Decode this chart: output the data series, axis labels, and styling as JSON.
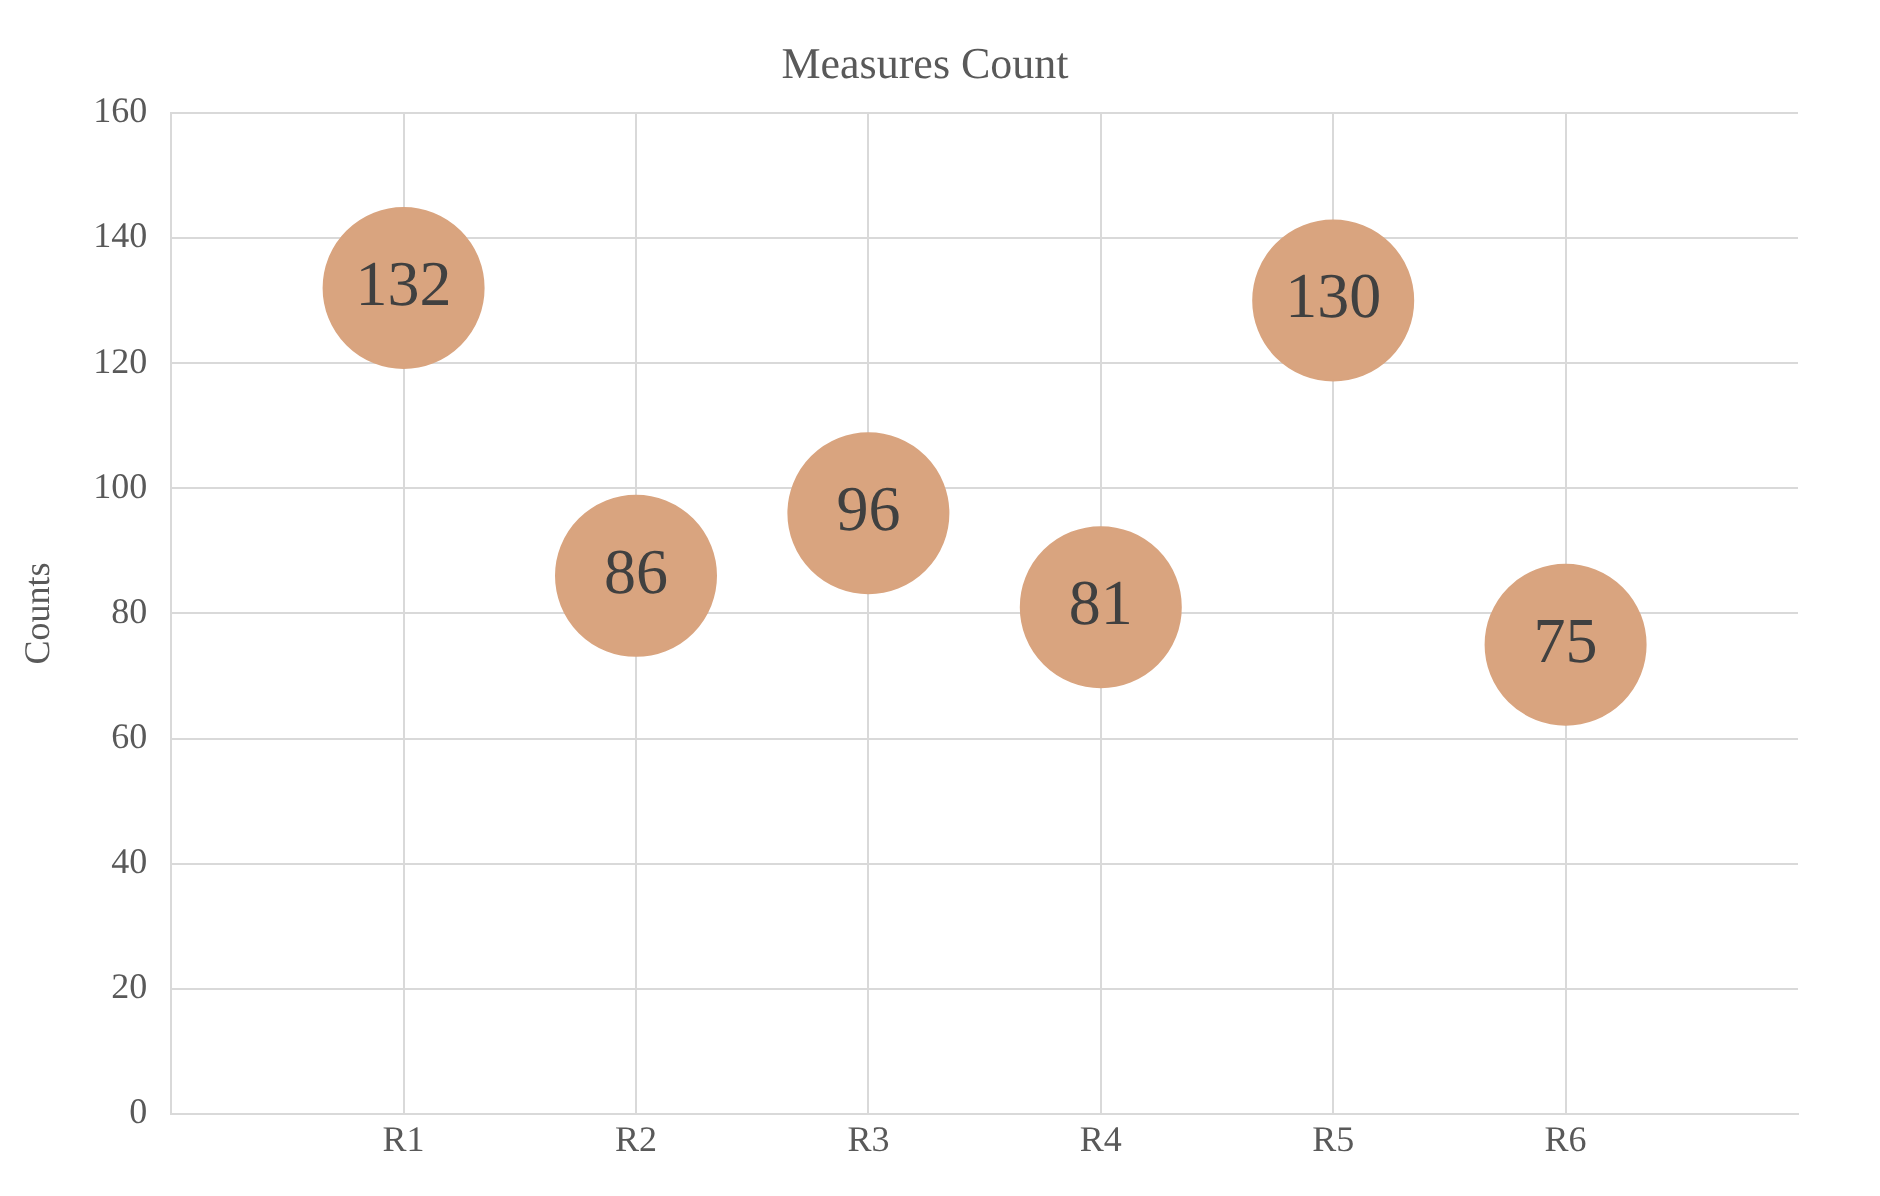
{
  "chart_data": {
    "type": "scatter",
    "title": "Measures Count",
    "ylabel": "Counts",
    "categories": [
      "R1",
      "R2",
      "R3",
      "R4",
      "R5",
      "R6"
    ],
    "values": [
      132,
      86,
      96,
      81,
      130,
      75
    ],
    "color": "#d9a47f",
    "ylim": [
      0,
      160
    ],
    "yticks": [
      0,
      20,
      40,
      60,
      80,
      100,
      120,
      140,
      160
    ],
    "grid": true,
    "marker": "circle",
    "data_labels": true
  }
}
